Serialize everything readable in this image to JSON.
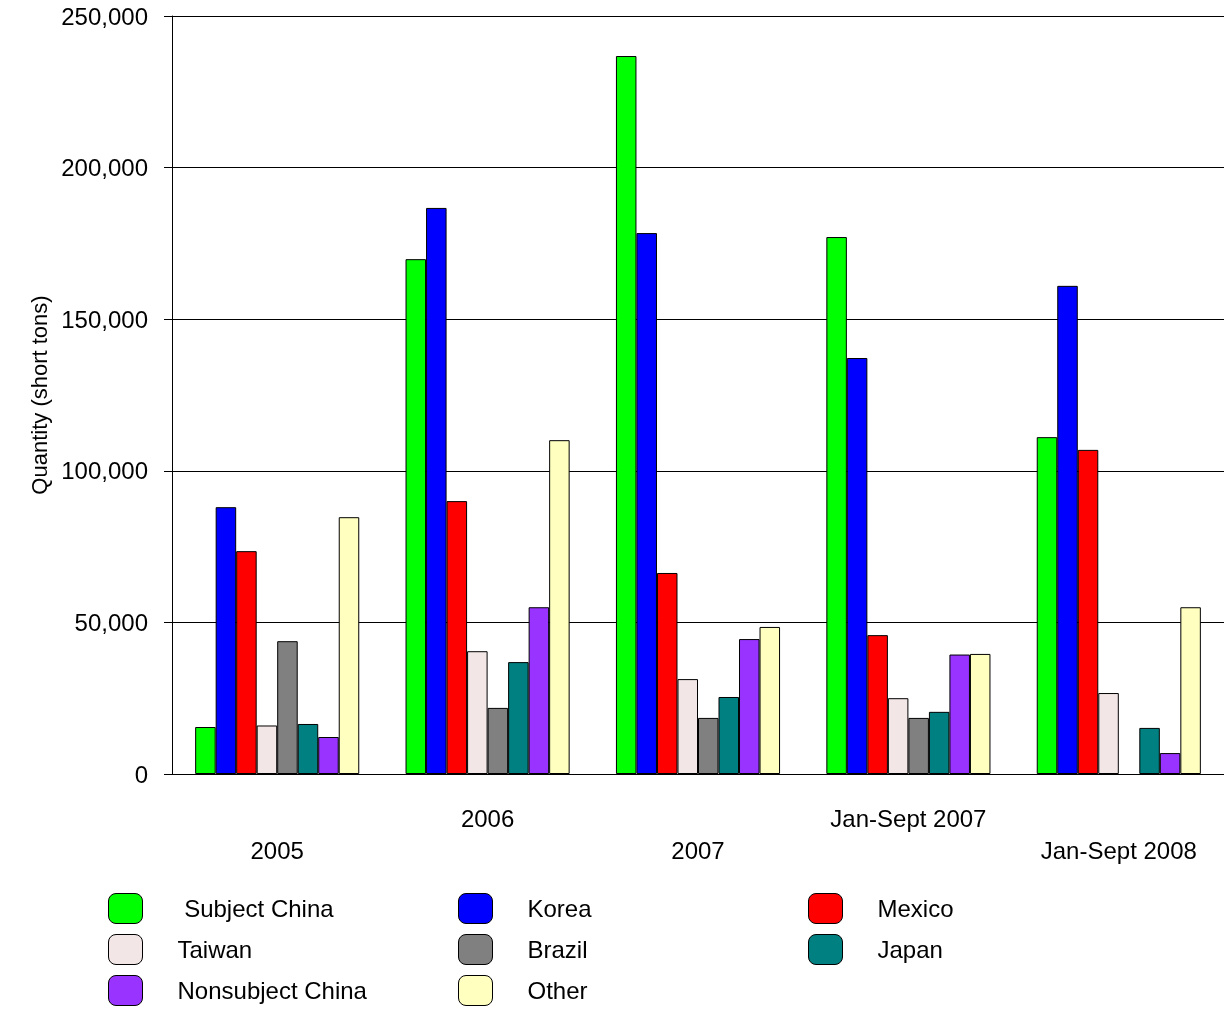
{
  "chart_data": {
    "type": "bar",
    "ylabel": "Quantity (short tons)",
    "categories": [
      "2005",
      "2006",
      "2007",
      "Jan-Sept 2007",
      "Jan-Sept 2008"
    ],
    "series": [
      {
        "name": " Subject China",
        "color": "#00ff00",
        "values": [
          15500,
          169800,
          236800,
          177100,
          111100
        ]
      },
      {
        "name": "Korea",
        "color": "#0000ff",
        "values": [
          88000,
          186700,
          178400,
          137200,
          161000
        ]
      },
      {
        "name": "Mexico",
        "color": "#ff0000",
        "values": [
          73500,
          90000,
          66300,
          45800,
          106900
        ]
      },
      {
        "name": "Taiwan",
        "color": "#f2e6e6",
        "values": [
          16000,
          40500,
          31300,
          25000,
          26700
        ]
      },
      {
        "name": "Brazil",
        "color": "#808080",
        "values": [
          43800,
          21800,
          18500,
          18500,
          null
        ]
      },
      {
        "name": "Japan",
        "color": "#008080",
        "values": [
          16500,
          36900,
          25400,
          20500,
          15200
        ]
      },
      {
        "name": "Nonsubject China",
        "color": "#9933ff",
        "values": [
          12200,
          55000,
          44500,
          39400,
          6900
        ]
      },
      {
        "name": "Other",
        "color": "#ffffc0",
        "values": [
          84700,
          110100,
          48500,
          39600,
          55000
        ]
      }
    ],
    "ylim": [
      0,
      250000
    ],
    "yticks": [
      0,
      {
        "value": 50000,
        "label": "50,000"
      },
      {
        "value": 100000,
        "label": "100,000"
      },
      {
        "value": 150000,
        "label": "150,000"
      },
      {
        "value": 200000,
        "label": "200,000"
      },
      {
        "value": 250000,
        "label": "250,000"
      }
    ],
    "grid": "y",
    "legend": "bottom"
  }
}
